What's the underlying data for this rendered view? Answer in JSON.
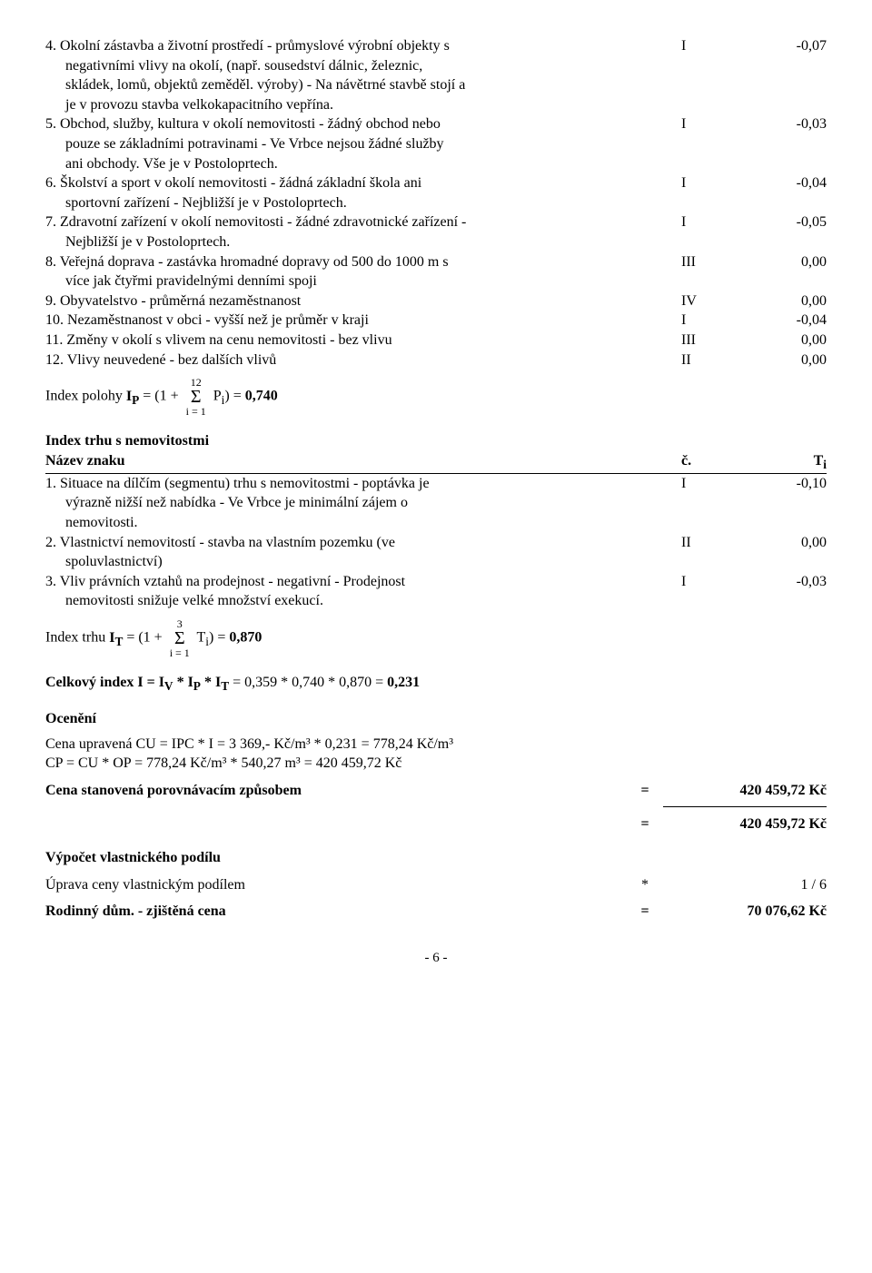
{
  "items_p": [
    {
      "num": "4.",
      "first": "Okolní zástavba a životní prostředí - průmyslové výrobní objekty s",
      "cont": [
        "negativními vlivy na okolí, (např. sousedství dálnic, železnic,",
        "skládek, lomů, objektů zeměděl. výroby) - Na návětrné stavbě stojí a",
        "je v provozu stavba velkokapacitního vepřína."
      ],
      "c": "I",
      "v": "-0,07"
    },
    {
      "num": "5.",
      "first": "Obchod, služby, kultura v okolí nemovitosti - žádný obchod nebo",
      "cont": [
        "pouze se základními potravinami - Ve Vrbce nejsou žádné služby",
        "ani obchody. Vše je v Postoloprtech."
      ],
      "c": "I",
      "v": "-0,03"
    },
    {
      "num": "6.",
      "first": "Školství a sport v okolí nemovitosti - žádná základní škola ani",
      "cont": [
        "sportovní zařízení - Nejbližší je v Postoloprtech."
      ],
      "c": "I",
      "v": "-0,04"
    },
    {
      "num": "7.",
      "first": "Zdravotní zařízení v okolí nemovitosti - žádné zdravotnické zařízení -",
      "cont": [
        "Nejbližší je v Postoloprtech."
      ],
      "c": "I",
      "v": "-0,05"
    },
    {
      "num": "8.",
      "first": "Veřejná doprava - zastávka hromadné dopravy od 500 do 1000 m s",
      "cont": [
        "více jak čtyřmi pravidelnými denními spoji"
      ],
      "c": "III",
      "v": "0,00"
    },
    {
      "num": "9.",
      "first": "Obyvatelstvo - průměrná nezaměstnanost",
      "cont": [],
      "c": "IV",
      "v": "0,00"
    },
    {
      "num": "10.",
      "first": "Nezaměstnanost v obci - vyšší než je průměr v kraji",
      "cont": [],
      "c": "I",
      "v": "-0,04"
    },
    {
      "num": "11.",
      "first": "Změny v okolí s vlivem na cenu nemovitosti - bez vlivu",
      "cont": [],
      "c": "III",
      "v": "0,00"
    },
    {
      "num": "12.",
      "first": "Vlivy neuvedené - bez dalších vlivů",
      "cont": [],
      "c": "II",
      "v": "0,00"
    }
  ],
  "index_p": {
    "prefix": "Index polohy ",
    "varname": "I",
    "sub": "P",
    "equals": " = (1 + ",
    "sigma_top": "12",
    "sigma_bot": "i = 1",
    "after": " P",
    "after_sub": "i",
    "close": ") = ",
    "result": "0,740"
  },
  "market_header": "Index trhu s nemovitostmi",
  "market_cols": {
    "name": "Název znaku",
    "c": "č.",
    "v": "T",
    "vsub": "i"
  },
  "items_t": [
    {
      "num": "1.",
      "first": "Situace na dílčím (segmentu) trhu s nemovitostmi - poptávka je",
      "cont": [
        "výrazně nižší než nabídka - Ve Vrbce je minimální zájem o",
        "nemovitosti."
      ],
      "c": "I",
      "v": "-0,10"
    },
    {
      "num": "2.",
      "first": "Vlastnictví nemovitostí - stavba na vlastním pozemku (ve",
      "cont": [
        "spoluvlastnictví)"
      ],
      "c": "II",
      "v": "0,00"
    },
    {
      "num": "3.",
      "first": "Vliv právních vztahů na prodejnost - negativní - Prodejnost",
      "cont": [
        "nemovitosti snižuje velké množství exekucí."
      ],
      "c": "I",
      "v": "-0,03"
    }
  ],
  "index_t": {
    "prefix": "Index trhu ",
    "varname": "I",
    "sub": "T",
    "equals": " = (1 + ",
    "sigma_top": "3",
    "sigma_bot": "i = 1",
    "after": " T",
    "after_sub": "i",
    "close": ") = ",
    "result": "0,870"
  },
  "total_index": {
    "label_pre": "Celkový index I",
    "expr": " = I",
    "subs": [
      "V",
      "P",
      "T"
    ],
    "nums": " = 0,359 * 0,740 * 0,870 = ",
    "result": "0,231"
  },
  "ocen_header": "Ocenění",
  "ocen_lines": [
    "Cena upravená CU = IPC * I = 3 369,- Kč/m³ * 0,231 = 778,24 Kč/m³",
    "CP = CU * OP = 778,24 Kč/m³ * 540,27 m³ = 420 459,72 Kč"
  ],
  "result1": {
    "label": "Cena stanovená porovnávacím způsobem",
    "eq": "=",
    "val": "420 459,72 Kč"
  },
  "result2": {
    "eq": "=",
    "val": "420 459,72 Kč"
  },
  "podil_header": "Výpočet vlastnického podílu",
  "podil_row": {
    "label": "Úprava ceny vlastnickým podílem",
    "eq": "*",
    "val": "1 / 6"
  },
  "final_row": {
    "label": "Rodinný dům. - zjištěná cena",
    "eq": "=",
    "val": "70 076,62 Kč"
  },
  "page": "- 6 -"
}
